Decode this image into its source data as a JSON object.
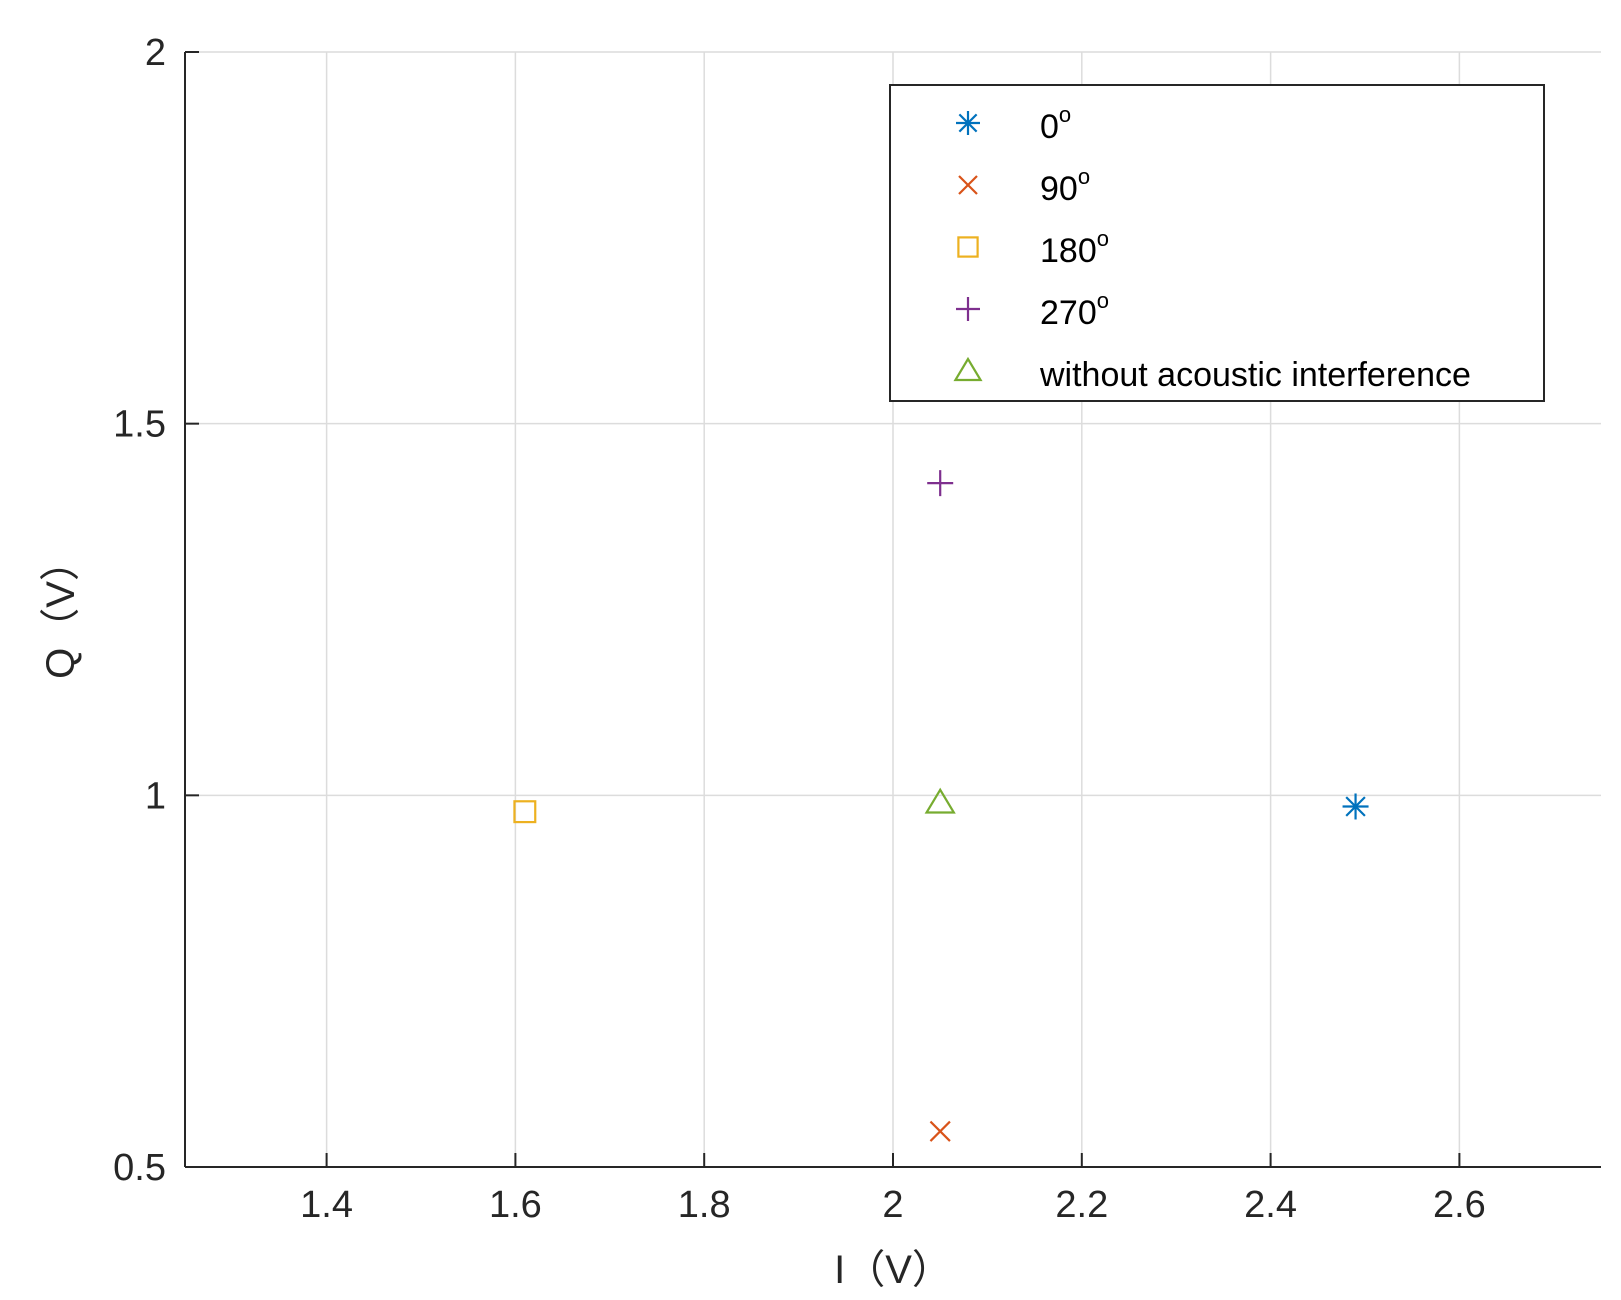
{
  "chart_data": {
    "type": "scatter",
    "title": "",
    "xlabel": "I（V）",
    "ylabel": "Q（V）",
    "xlim": [
      1.25,
      2.75
    ],
    "ylim": [
      0.5,
      2.0
    ],
    "x_ticks": [
      "1.4",
      "1.6",
      "1.8",
      "2",
      "2.2",
      "2.4",
      "2.6"
    ],
    "x_tick_values": [
      1.4,
      1.6,
      1.8,
      2.0,
      2.2,
      2.4,
      2.6
    ],
    "y_ticks": [
      "0.5",
      "1",
      "1.5",
      "2"
    ],
    "y_tick_values": [
      0.5,
      1.0,
      1.5,
      2.0
    ],
    "grid": true,
    "legend_position": "top-right",
    "series": [
      {
        "name": "0",
        "name_sup": "o",
        "marker": "asterisk",
        "color": "#0072BD",
        "x": [
          2.49
        ],
        "y": [
          0.985
        ]
      },
      {
        "name": "90",
        "name_sup": "o",
        "marker": "x",
        "color": "#D95319",
        "x": [
          2.05
        ],
        "y": [
          0.548
        ]
      },
      {
        "name": "180",
        "name_sup": "o",
        "marker": "square",
        "color": "#EDB120",
        "x": [
          1.61
        ],
        "y": [
          0.978
        ]
      },
      {
        "name": "270",
        "name_sup": "o",
        "marker": "plus",
        "color": "#7E2F8E",
        "x": [
          2.05
        ],
        "y": [
          1.42
        ]
      },
      {
        "name": "without acoustic interference",
        "name_sup": "",
        "marker": "triangle",
        "color": "#77AC30",
        "x": [
          2.05
        ],
        "y": [
          0.99
        ]
      }
    ]
  }
}
